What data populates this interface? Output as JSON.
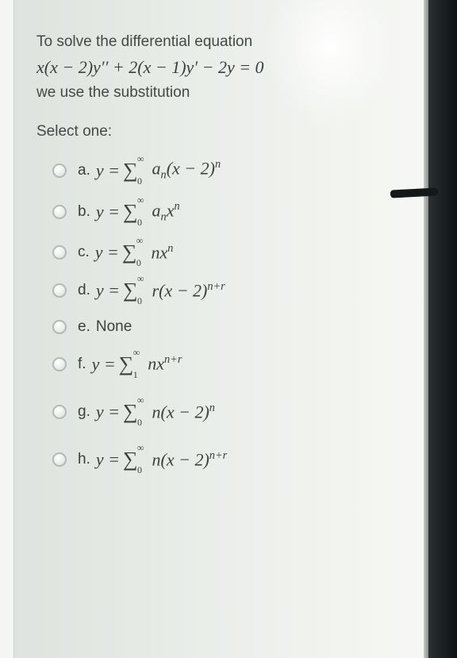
{
  "colors": {
    "text": "#3d4240",
    "paper_bg_light": "#ecefeb",
    "radio_border": "#b2bab4",
    "dark_edge": "#0d1214"
  },
  "typography": {
    "body_font": "Arial",
    "math_font": "Cambria Math",
    "intro_size_pt": 14,
    "math_size_pt": 16
  },
  "intro_line1": "To solve the differential equation",
  "equation": "x(x − 2)y′′ + 2(x − 1)y′ − 2y = 0",
  "intro_line2": "we use the substitution",
  "select_label": "Select one:",
  "sum_lower_0": "0",
  "sum_lower_1": "1",
  "sum_upper": "∞",
  "options": {
    "a": {
      "letter": "a.",
      "lhs": "y =",
      "lower": "0",
      "rhs": "aₙ(x − 2)ⁿ",
      "rhs_html": "<i>a</i><sub>n</sub>(<i>x</i> − 2)<sup><i>n</i></sup>"
    },
    "b": {
      "letter": "b.",
      "lhs": "y =",
      "lower": "0",
      "rhs": "aₙxⁿ",
      "rhs_html": "<i>a</i><sub>n</sub><i>x</i><sup><i>n</i></sup>"
    },
    "c": {
      "letter": "c.",
      "lhs": "y =",
      "lower": "0",
      "rhs": "nxⁿ",
      "rhs_html": "<i>n</i><i>x</i><sup><i>n</i></sup>"
    },
    "d": {
      "letter": "d.",
      "lhs": "y =",
      "lower": "0",
      "rhs": "r(x − 2)ⁿ⁺ʳ",
      "rhs_html": "<i>r</i>(<i>x</i> − 2)<sup><i>n</i>+<i>r</i></sup>"
    },
    "e": {
      "letter": "e.",
      "text": "None"
    },
    "f": {
      "letter": "f.",
      "lhs": "y =",
      "lower": "1",
      "rhs": "nxⁿ⁺ʳ",
      "rhs_html": "<i>n</i><i>x</i><sup><i>n</i>+<i>r</i></sup>"
    },
    "g": {
      "letter": "g.",
      "lhs": "y =",
      "lower": "0",
      "rhs": "n(x − 2)ⁿ",
      "rhs_html": "<i>n</i>(<i>x</i> − 2)<sup><i>n</i></sup>"
    },
    "h": {
      "letter": "h.",
      "lhs": "y =",
      "lower": "0",
      "rhs": "n(x − 2)ⁿ⁺ʳ",
      "rhs_html": "<i>n</i>(<i>x</i> − 2)<sup><i>n</i>+<i>r</i></sup>"
    }
  }
}
